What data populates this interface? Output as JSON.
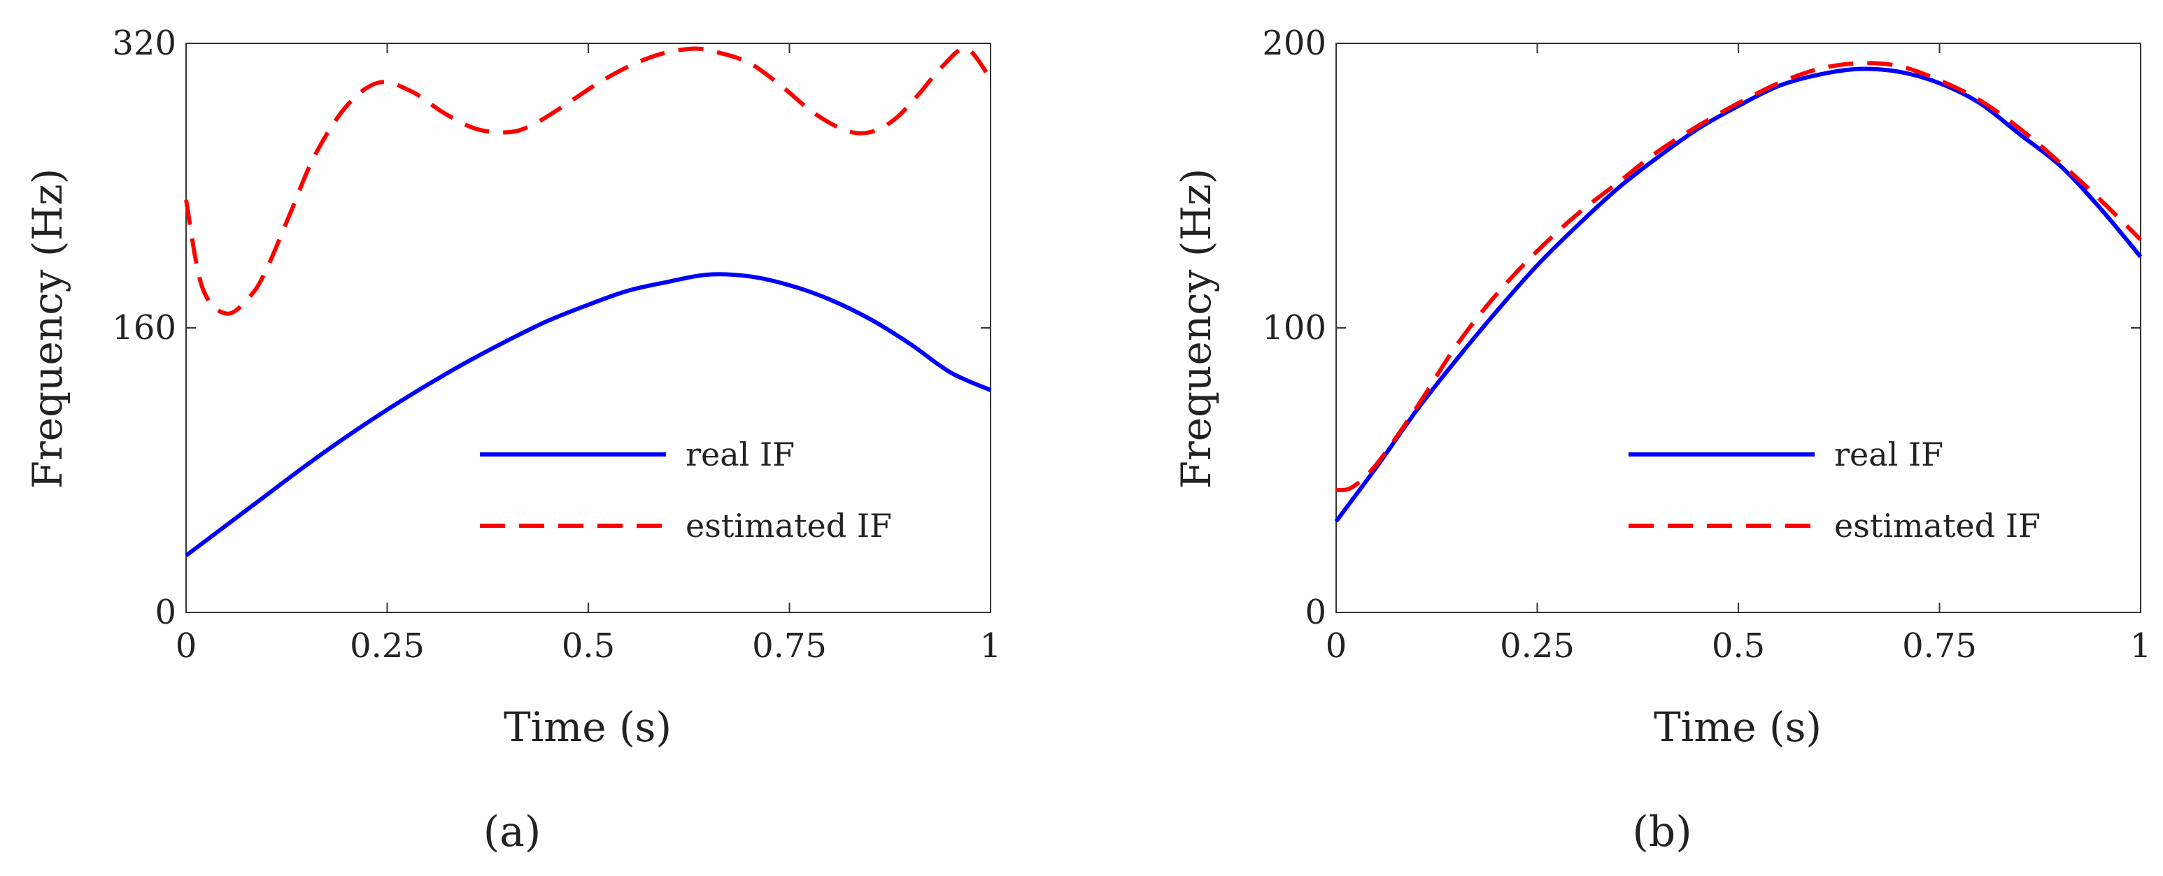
{
  "figure": {
    "panels": [
      "a",
      "b"
    ]
  },
  "chart_data": [
    {
      "type": "line",
      "panel": "a",
      "caption": "(a)",
      "xlabel": "Time (s)",
      "ylabel": "Frequency (Hz)",
      "xlim": [
        0,
        1
      ],
      "ylim": [
        0,
        320
      ],
      "xticks": [
        0,
        0.25,
        0.5,
        0.75,
        1
      ],
      "xtick_labels": [
        "0",
        "0.25",
        "0.5",
        "0.75",
        "1"
      ],
      "yticks": [
        0,
        160,
        320
      ],
      "ytick_labels": [
        "0",
        "160",
        "320"
      ],
      "legend_position": "bottom-right",
      "series": [
        {
          "name": "real IF",
          "color": "#0000ff",
          "style": "solid",
          "x": [
            0,
            0.05,
            0.1,
            0.15,
            0.2,
            0.25,
            0.3,
            0.35,
            0.4,
            0.45,
            0.5,
            0.55,
            0.6,
            0.65,
            0.7,
            0.75,
            0.8,
            0.85,
            0.9,
            0.95,
            1
          ],
          "y": [
            32,
            49,
            66,
            83,
            99,
            114,
            128,
            141,
            153,
            164,
            173,
            181,
            186,
            190,
            189,
            184,
            176,
            165,
            151,
            135,
            125
          ]
        },
        {
          "name": "estimated IF",
          "color": "#ff0000",
          "style": "dashed",
          "x": [
            0,
            0.02,
            0.05,
            0.08,
            0.1,
            0.13,
            0.16,
            0.2,
            0.24,
            0.28,
            0.32,
            0.36,
            0.4,
            0.43,
            0.47,
            0.51,
            0.55,
            0.59,
            0.63,
            0.66,
            0.7,
            0.74,
            0.78,
            0.82,
            0.85,
            0.88,
            0.91,
            0.94,
            0.97,
            1
          ],
          "y": [
            232,
            183,
            168,
            178,
            193,
            225,
            257,
            285,
            298,
            293,
            281,
            272,
            270,
            274,
            285,
            297,
            307,
            314,
            317,
            315,
            309,
            296,
            281,
            271,
            270,
            277,
            291,
            307,
            317,
            300
          ]
        }
      ]
    },
    {
      "type": "line",
      "panel": "b",
      "caption": "(b)",
      "xlabel": "Time (s)",
      "ylabel": "Frequency (Hz)",
      "xlim": [
        0,
        1
      ],
      "ylim": [
        0,
        200
      ],
      "xticks": [
        0,
        0.25,
        0.5,
        0.75,
        1
      ],
      "xtick_labels": [
        "0",
        "0.25",
        "0.5",
        "0.75",
        "1"
      ],
      "yticks": [
        0,
        100,
        200
      ],
      "ytick_labels": [
        "0",
        "100",
        "200"
      ],
      "legend_position": "bottom-right",
      "series": [
        {
          "name": "real IF",
          "color": "#0000ff",
          "style": "solid",
          "x": [
            0,
            0.05,
            0.1,
            0.15,
            0.2,
            0.25,
            0.3,
            0.35,
            0.4,
            0.45,
            0.5,
            0.55,
            0.6,
            0.65,
            0.7,
            0.75,
            0.8,
            0.85,
            0.9,
            0.95,
            1
          ],
          "y": [
            32,
            51,
            71,
            89,
            106,
            122,
            136,
            149,
            160,
            170,
            178,
            185,
            189,
            191,
            190,
            186,
            179,
            168,
            157,
            142,
            125
          ]
        },
        {
          "name": "estimated IF",
          "color": "#ff0000",
          "style": "dashed",
          "x": [
            0,
            0.02,
            0.05,
            0.1,
            0.15,
            0.2,
            0.25,
            0.3,
            0.35,
            0.4,
            0.45,
            0.5,
            0.55,
            0.6,
            0.65,
            0.7,
            0.75,
            0.8,
            0.85,
            0.9,
            0.95,
            1
          ],
          "y": [
            43,
            44,
            52,
            72,
            94,
            112,
            127,
            140,
            151,
            162,
            171,
            179,
            186,
            191,
            193,
            192,
            187,
            180,
            170,
            158,
            145,
            131
          ]
        }
      ]
    }
  ]
}
